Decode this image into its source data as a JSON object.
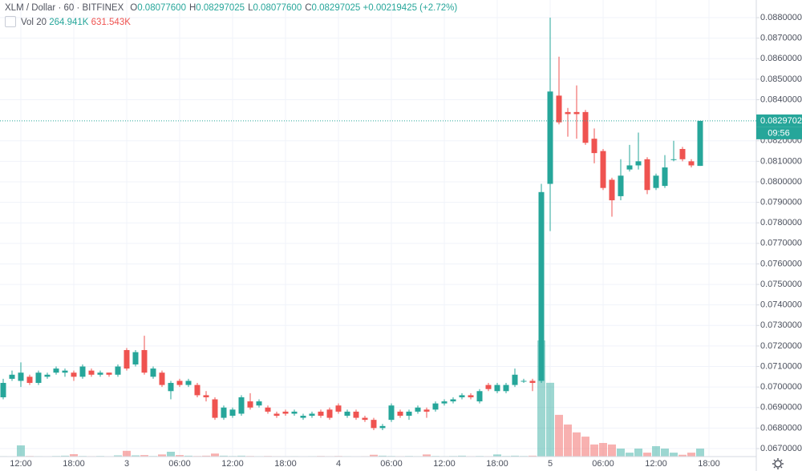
{
  "chart_data": {
    "type": "candlestick",
    "title": "XLM / Dollar · 60 · BITFINEX",
    "ohlc_readout": [
      {
        "key": "O",
        "value": "0.08077600"
      },
      {
        "key": "H",
        "value": "0.08297025"
      },
      {
        "key": "L",
        "value": "0.08077600"
      },
      {
        "key": "C",
        "value": "0.08297025"
      }
    ],
    "change": "+0.00219425 (+2.72%)",
    "volume_indicator": {
      "name": "Vol",
      "length": "20",
      "values": [
        "264.941K",
        "631.543K"
      ]
    },
    "up_color": "#26a69a",
    "down_color": "#ef5350",
    "categories": [
      null,
      null,
      "12:00",
      null,
      null,
      null,
      null,
      null,
      "18:00",
      null,
      null,
      null,
      null,
      null,
      "3",
      null,
      null,
      null,
      null,
      null,
      "06:00",
      null,
      null,
      null,
      null,
      null,
      "12:00",
      null,
      null,
      null,
      null,
      null,
      "18:00",
      null,
      null,
      null,
      null,
      null,
      "4",
      null,
      null,
      null,
      null,
      null,
      "06:00",
      null,
      null,
      null,
      null,
      null,
      "12:00",
      null,
      null,
      null,
      null,
      null,
      "18:00",
      null,
      null,
      null,
      null,
      null,
      "5",
      null,
      null,
      null,
      null,
      null,
      "06:00",
      null,
      null,
      null,
      null,
      null,
      "12:00",
      null,
      null,
      null,
      null,
      null,
      "18:00"
    ],
    "open": [
      0.0695,
      0.0704,
      0.0703,
      0.0705,
      0.0702,
      0.0705,
      0.0707,
      0.0707,
      0.0707,
      0.0705,
      0.0708,
      0.0706,
      0.0707,
      0.0706,
      0.0718,
      0.0711,
      0.0718,
      0.0705,
      0.0707,
      0.0698,
      0.0703,
      0.0701,
      0.0701,
      0.0696,
      0.0694,
      0.0685,
      0.0686,
      0.0687,
      0.0693,
      0.0691,
      0.069,
      0.0687,
      0.0688,
      0.0687,
      0.0685,
      0.0686,
      0.0688,
      0.0689,
      0.0691,
      0.0686,
      0.0688,
      0.0685,
      0.0684,
      0.068,
      0.0684,
      0.0688,
      0.0686,
      0.0688,
      0.0689,
      0.0689,
      0.0692,
      0.0693,
      0.0695,
      0.0696,
      0.0693,
      0.0701,
      0.0698,
      0.0698,
      0.0701,
      0.0703,
      0.0703,
      0.0703,
      0.0799,
      0.0842,
      0.0834,
      0.0834,
      0.0834,
      0.0821,
      0.0815,
      0.0801,
      0.0793,
      0.0806,
      0.0808,
      0.0811,
      0.0797,
      0.0798,
      0.0811,
      0.0816,
      0.081,
      0.080776,
      null
    ],
    "high": [
      0.0704,
      0.0708,
      0.0712,
      0.0706,
      0.0708,
      0.0707,
      0.071,
      0.0709,
      0.0708,
      0.0711,
      0.0709,
      0.0708,
      0.0707,
      0.0711,
      0.0719,
      0.0718,
      0.0725,
      0.071,
      0.0708,
      0.0703,
      0.0704,
      0.0704,
      0.0702,
      0.0698,
      0.0695,
      0.0691,
      0.069,
      0.0696,
      0.0697,
      0.0694,
      0.0691,
      0.0688,
      0.0689,
      0.0689,
      0.0687,
      0.0688,
      0.0689,
      0.069,
      0.0692,
      0.0689,
      0.0689,
      0.0686,
      0.0685,
      0.0682,
      0.0692,
      0.0689,
      0.0689,
      0.0691,
      0.069,
      0.0693,
      0.0694,
      0.0695,
      0.0697,
      0.0697,
      0.0699,
      0.0702,
      0.0702,
      0.0702,
      0.0709,
      0.0704,
      0.0704,
      0.0799,
      0.088,
      0.0861,
      0.0836,
      0.0847,
      0.0835,
      0.0826,
      0.0816,
      0.0802,
      0.0811,
      0.0818,
      0.0824,
      0.0812,
      0.0804,
      0.0813,
      0.082,
      0.0817,
      0.0811,
      0.08297025,
      null
    ],
    "low": [
      0.0694,
      0.0703,
      0.07,
      0.0701,
      0.0701,
      0.0704,
      0.0706,
      0.0705,
      0.0703,
      0.0704,
      0.0705,
      0.0705,
      0.0705,
      0.0705,
      0.0708,
      0.071,
      0.0706,
      0.0704,
      0.07,
      0.0694,
      0.07,
      0.07,
      0.0695,
      0.0693,
      0.0684,
      0.0684,
      0.0685,
      0.0686,
      0.0689,
      0.069,
      0.0687,
      0.0685,
      0.0686,
      0.0686,
      0.0684,
      0.0685,
      0.0685,
      0.0684,
      0.0687,
      0.0685,
      0.0684,
      0.0683,
      0.0679,
      0.0679,
      0.0683,
      0.0685,
      0.0684,
      0.0687,
      0.0685,
      0.0688,
      0.0691,
      0.0692,
      0.0694,
      0.0694,
      0.0692,
      0.0698,
      0.0697,
      0.0697,
      0.07,
      0.0702,
      0.0698,
      0.0702,
      0.0776,
      0.0828,
      0.0822,
      0.0821,
      0.0818,
      0.0809,
      0.0796,
      0.0783,
      0.0791,
      0.0805,
      0.0806,
      0.0794,
      0.0796,
      0.0797,
      0.081,
      0.081,
      0.0807,
      0.080776,
      null
    ],
    "close": [
      0.0702,
      0.0706,
      0.0707,
      0.0702,
      0.0707,
      0.0706,
      0.0709,
      0.0708,
      0.0705,
      0.071,
      0.0706,
      0.0707,
      0.0706,
      0.071,
      0.0709,
      0.0717,
      0.0707,
      0.0709,
      0.0701,
      0.0702,
      0.0701,
      0.0703,
      0.0696,
      0.0695,
      0.0685,
      0.069,
      0.0689,
      0.0695,
      0.069,
      0.0693,
      0.0688,
      0.0686,
      0.0687,
      0.0688,
      0.0686,
      0.0687,
      0.0686,
      0.0685,
      0.0688,
      0.0688,
      0.0685,
      0.0684,
      0.068,
      0.0681,
      0.0691,
      0.0686,
      0.0688,
      0.069,
      0.0688,
      0.0692,
      0.0693,
      0.0694,
      0.0696,
      0.0695,
      0.0698,
      0.0699,
      0.0701,
      0.0701,
      0.0706,
      0.0703,
      0.0702,
      0.0795,
      0.0844,
      0.0829,
      0.0833,
      0.0833,
      0.0819,
      0.0814,
      0.0797,
      0.0791,
      0.0803,
      0.0808,
      0.081,
      0.0796,
      0.0803,
      0.0807,
      0.0811,
      0.0811,
      0.0808,
      0.08297025,
      null
    ],
    "volume": [
      15,
      10,
      370,
      20,
      15,
      10,
      20,
      30,
      80,
      20,
      15,
      20,
      10,
      40,
      190,
      40,
      50,
      20,
      70,
      160,
      50,
      30,
      20,
      30,
      100,
      30,
      20,
      30,
      20,
      15,
      20,
      15,
      10,
      15,
      10,
      15,
      20,
      15,
      20,
      15,
      10,
      15,
      60,
      30,
      20,
      15,
      20,
      15,
      70,
      20,
      15,
      20,
      30,
      15,
      20,
      15,
      70,
      20,
      30,
      20,
      30,
      3840,
      2440,
      1380,
      1060,
      800,
      660,
      400,
      450,
      400,
      265,
      130,
      265,
      130,
      345,
      265,
      130,
      60,
      130,
      264.941,
      null
    ],
    "ylim": [
      0.06661,
      0.08886
    ],
    "yticks": [
      {
        "value": 0.067,
        "label": "0.06700000"
      },
      {
        "value": 0.068,
        "label": "0.06800000"
      },
      {
        "value": 0.069,
        "label": "0.06900000"
      },
      {
        "value": 0.07,
        "label": "0.07000000"
      },
      {
        "value": 0.071,
        "label": "0.07100000"
      },
      {
        "value": 0.072,
        "label": "0.07200000"
      },
      {
        "value": 0.073,
        "label": "0.07300000"
      },
      {
        "value": 0.074,
        "label": "0.07400000"
      },
      {
        "value": 0.075,
        "label": "0.07500000"
      },
      {
        "value": 0.076,
        "label": "0.07600000"
      },
      {
        "value": 0.077,
        "label": "0.07700000"
      },
      {
        "value": 0.078,
        "label": "0.07800000"
      },
      {
        "value": 0.079,
        "label": "0.07900000"
      },
      {
        "value": 0.08,
        "label": "0.08000000"
      },
      {
        "value": 0.081,
        "label": "0.08100000"
      },
      {
        "value": 0.082,
        "label": "0.08200000"
      },
      {
        "value": 0.084,
        "label": "0.08400000"
      },
      {
        "value": 0.085,
        "label": "0.08500000"
      },
      {
        "value": 0.086,
        "label": "0.08600000"
      },
      {
        "value": 0.087,
        "label": "0.08700000"
      },
      {
        "value": 0.088,
        "label": "0.08800000"
      }
    ],
    "last_price": {
      "value": 0.08297025,
      "label": "0.08297025"
    },
    "countdown": "09:56",
    "grid": true
  }
}
